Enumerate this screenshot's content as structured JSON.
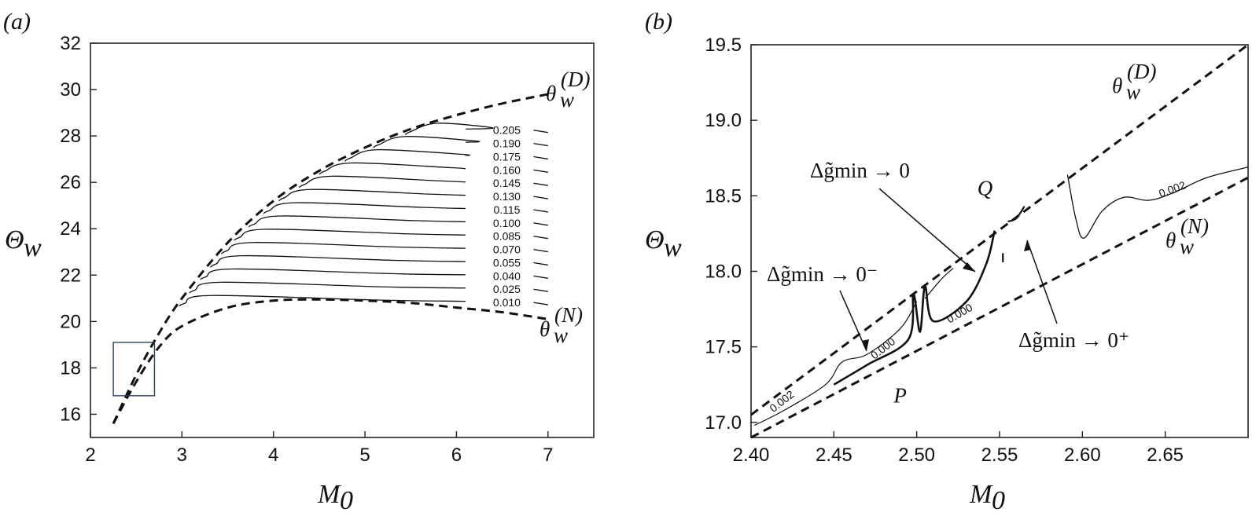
{
  "chart_data": [
    {
      "panel": "(a)",
      "type": "line",
      "xlabel": "M0",
      "ylabel": "Θw",
      "xlim": [
        2,
        7.5
      ],
      "ylim": [
        15,
        32
      ],
      "xticks": [
        "2",
        "3",
        "4",
        "5",
        "6",
        "7"
      ],
      "yticks": [
        "16",
        "18",
        "20",
        "22",
        "24",
        "26",
        "28",
        "30",
        "32"
      ],
      "boundary_curves": [
        {
          "name": "θw(D)",
          "style": "dashed",
          "x": [
            2.25,
            2.5,
            2.75,
            3,
            3.5,
            4,
            4.5,
            5,
            5.5,
            6,
            6.5,
            7
          ],
          "y": [
            15.6,
            17.7,
            19.5,
            21.0,
            23.4,
            25.2,
            26.5,
            27.5,
            28.3,
            28.9,
            29.4,
            29.8
          ]
        },
        {
          "name": "θw(N)",
          "style": "dashed",
          "x": [
            2.25,
            2.5,
            2.75,
            3,
            3.5,
            4,
            4.5,
            5,
            5.5,
            6,
            6.5,
            7
          ],
          "y": [
            15.6,
            17.4,
            18.9,
            19.8,
            20.6,
            20.9,
            20.95,
            20.9,
            20.8,
            20.6,
            20.4,
            20.1
          ]
        }
      ],
      "contour_levels": [
        "0.010",
        "0.025",
        "0.040",
        "0.055",
        "0.070",
        "0.085",
        "0.100",
        "0.115",
        "0.130",
        "0.145",
        "0.160",
        "0.175",
        "0.190",
        "0.205"
      ],
      "inset_box": {
        "x": [
          2.25,
          2.7
        ],
        "y": [
          16.8,
          19.1
        ]
      }
    },
    {
      "panel": "(b)",
      "type": "line",
      "xlabel": "M0",
      "ylabel": "Θw",
      "xlim": [
        2.4,
        2.7
      ],
      "ylim": [
        16.9,
        19.5
      ],
      "xticks": [
        "2.40",
        "2.45",
        "2.50",
        "2.55",
        "2.60",
        "2.65"
      ],
      "yticks": [
        "17.0",
        "17.5",
        "18.0",
        "18.5",
        "19.0",
        "19.5"
      ],
      "boundary_curves": [
        {
          "name": "θw(D)",
          "style": "dashed",
          "x": [
            2.4,
            2.7
          ],
          "y": [
            17.05,
            19.5
          ]
        },
        {
          "name": "θw(N)",
          "style": "dashed",
          "x": [
            2.4,
            2.7
          ],
          "y": [
            16.9,
            18.62
          ]
        }
      ],
      "contour_labels": [
        "0.002",
        "0.000",
        "0.000",
        "0.002"
      ],
      "points": [
        {
          "label": "P",
          "x": 2.49,
          "y": 17.35
        },
        {
          "label": "Q",
          "x": 2.545,
          "y": 18.42
        }
      ],
      "annotations": [
        "Δg̃min → 0",
        "Δg̃min → 0⁻",
        "Δg̃min → 0⁺"
      ]
    }
  ]
}
